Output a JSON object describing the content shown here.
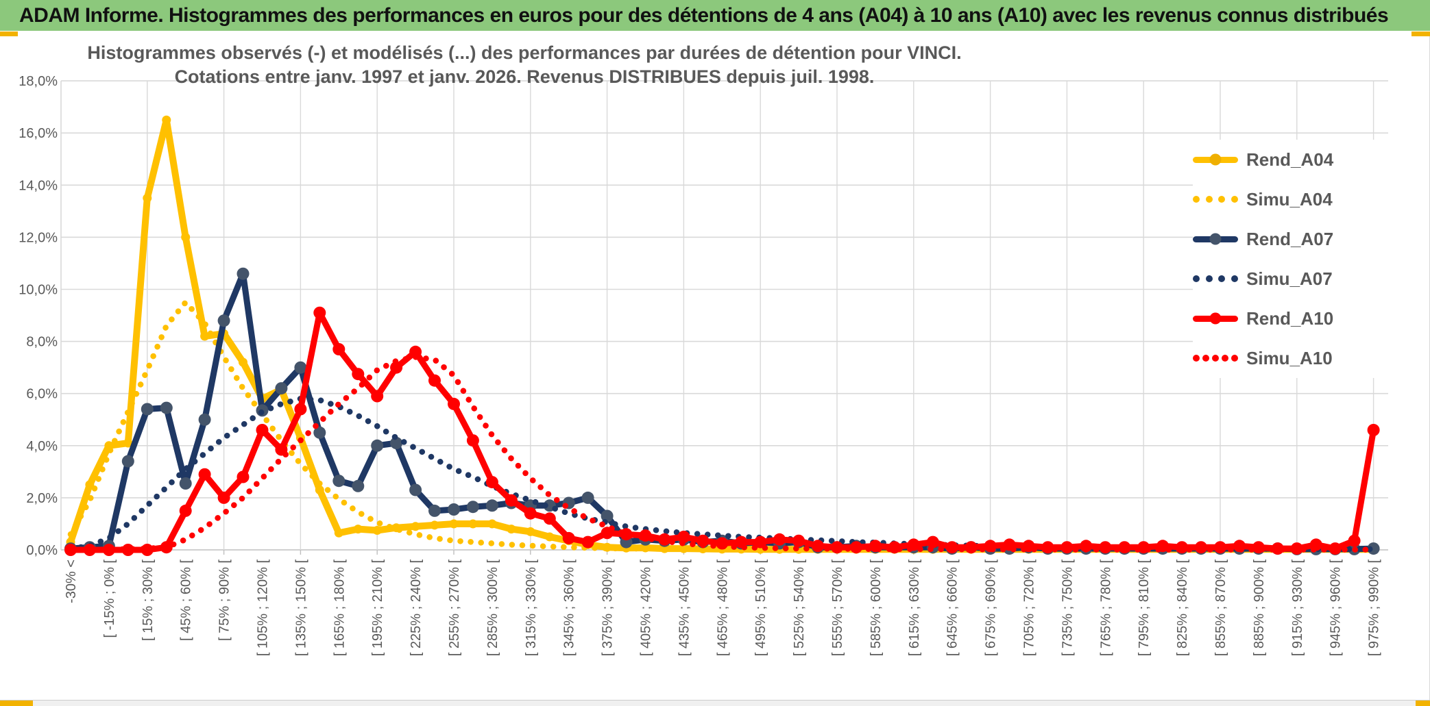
{
  "header": {
    "title": "ADAM Informe. Histogrammes des performances en euros pour des détentions de 4 ans (A04) à 10 ans (A10) avec les revenus connus distribués"
  },
  "chart": {
    "title_line1": "Histogrammes observés (-) et modélisés (...) des performances par durées de détention pour VINCI.",
    "title_line2": "Cotations entre janv. 1997 et janv. 2026. Revenus DISTRIBUES depuis juil. 1998."
  },
  "colors": {
    "header_bg": "#8CC87C",
    "gold": "#FFC000",
    "navy": "#1F3864",
    "navy_marker": "#44546A",
    "red": "#FF0000",
    "grid": "#D9D9D9",
    "axis_line": "#BFBFBF",
    "axis_text": "#595959",
    "corner_accent": "#F2B200"
  },
  "chart_data": {
    "type": "line",
    "title": "Histogrammes observés (-) et modélisés (...) des performances par durées de détention pour VINCI. Cotations entre janv. 1997 et janv. 2026. Revenus DISTRIBUES depuis juil. 1998.",
    "xlabel": "",
    "ylabel": "",
    "ylim": [
      0,
      18
    ],
    "grid": true,
    "legend_position": "right",
    "y_ticks": [
      "18,0%",
      "16,0%",
      "14,0%",
      "12,0%",
      "10,0%",
      "8,0%",
      "6,0%",
      "4,0%",
      "2,0%",
      "0,0%"
    ],
    "categories": [
      "-30% <",
      "",
      "[ -15% ; 0% [",
      "",
      "[ 15% ; 30% [",
      "",
      "[ 45% ; 60% [",
      "",
      "[ 75% ; 90% [",
      "",
      "[ 105% ; 120% [",
      "",
      "[ 135% ; 150% [",
      "",
      "[ 165% ; 180% [",
      "",
      "[ 195% ; 210% [",
      "",
      "[ 225% ; 240% [",
      "",
      "[ 255% ; 270% [",
      "",
      "[ 285% ; 300% [",
      "",
      "[ 315% ; 330% [",
      "",
      "[ 345% ; 360% [",
      "",
      "[ 375% ; 390% [",
      "",
      "[ 405% ; 420% [",
      "",
      "[ 435% ; 450% [",
      "",
      "[ 465% ; 480% [",
      "",
      "[ 495% ; 510% [",
      "",
      "[ 525% ; 540% [",
      "",
      "[ 555% ; 570% [",
      "",
      "[ 585% ; 600% [",
      "",
      "[ 615% ; 630% [",
      "",
      "[ 645% ; 660% [",
      "",
      "[ 675% ; 690% [",
      "",
      "[ 705% ; 720% [",
      "",
      "[ 735% ; 750% [",
      "",
      "[ 765% ; 780% [",
      "",
      "[ 795% ; 810% [",
      "",
      "[ 825% ; 840% [",
      "",
      "[ 855% ; 870% [",
      "",
      "[ 885% ; 900% [",
      "",
      "[ 915% ; 930% [",
      "",
      "[ 945% ; 960% [",
      "",
      "[ 975% ; 990% ["
    ],
    "series": [
      {
        "name": "Rend_A04",
        "color": "#FFC000",
        "marker_color": "#FFC000",
        "style": "solid",
        "marker": true,
        "values": [
          0.3,
          2.5,
          4.0,
          4.1,
          13.5,
          16.5,
          12.0,
          8.2,
          8.3,
          7.2,
          5.8,
          6.15,
          4.3,
          2.3,
          0.65,
          0.8,
          0.75,
          0.85,
          0.9,
          0.95,
          1.0,
          1.0,
          1.0,
          0.8,
          0.7,
          0.5,
          0.35,
          0.2,
          0.1,
          0.07,
          0.08,
          0.05,
          0.05,
          0.04,
          0.03,
          0.03,
          0.02,
          0.02,
          0.02,
          0.02,
          0.02,
          0.02,
          0.02,
          0.02,
          0.02,
          0.02,
          0.02,
          0.02,
          0.02,
          0.02,
          0.02,
          0.02,
          0.02,
          0.02,
          0.02,
          0.02,
          0.02,
          0.02,
          0.02,
          0.02,
          0.02,
          0.02,
          0.02,
          0.02,
          0.02,
          0.02,
          0.02,
          0.02,
          0.02
        ]
      },
      {
        "name": "Simu_A04",
        "color": "#FFC000",
        "style": "dotted",
        "marker": false,
        "values": [
          0.6,
          1.9,
          3.7,
          5.3,
          6.9,
          8.6,
          9.5,
          8.7,
          7.4,
          6.2,
          5.2,
          4.2,
          3.3,
          2.55,
          1.95,
          1.45,
          1.05,
          0.8,
          0.6,
          0.45,
          0.35,
          0.3,
          0.25,
          0.2,
          0.16,
          0.13,
          0.1,
          0.08,
          0.06,
          0.05,
          0.05,
          0.04,
          0.04,
          0.03,
          0.03,
          0.03,
          0.02,
          0.02,
          0.02,
          0.02,
          0.02,
          0.02,
          0.02,
          0.02,
          0.02,
          0.02,
          0.02,
          0.02,
          0.02,
          0.02,
          0.02,
          0.02,
          0.02,
          0.02,
          0.02,
          0.02,
          0.02,
          0.02,
          0.02,
          0.02,
          0.02,
          0.02,
          0.02,
          0.02,
          0.02,
          0.02,
          0.02,
          0.02,
          0.02
        ]
      },
      {
        "name": "Rend_A07",
        "color": "#1F3864",
        "marker_color": "#44546A",
        "style": "solid",
        "marker": true,
        "values": [
          0.05,
          0.1,
          0.15,
          3.4,
          5.4,
          5.45,
          2.55,
          5.0,
          8.8,
          10.6,
          5.35,
          6.2,
          7.0,
          4.5,
          2.65,
          2.45,
          4.0,
          4.1,
          2.3,
          1.5,
          1.55,
          1.65,
          1.7,
          1.8,
          1.7,
          1.7,
          1.8,
          2.0,
          1.3,
          0.3,
          0.4,
          0.35,
          0.4,
          0.3,
          0.35,
          0.25,
          0.3,
          0.25,
          0.3,
          0.1,
          0.1,
          0.15,
          0.1,
          0.1,
          0.1,
          0.1,
          0.05,
          0.1,
          0.05,
          0.05,
          0.1,
          0.05,
          0.05,
          0.05,
          0.05,
          0.05,
          0.05,
          0.05,
          0.05,
          0.05,
          0.05,
          0.05,
          0.05,
          0.05,
          0.03,
          0.03,
          0.03,
          0.03,
          0.05
        ]
      },
      {
        "name": "Simu_A07",
        "color": "#1F3864",
        "style": "dotted",
        "marker": false,
        "values": [
          0.05,
          0.15,
          0.45,
          1.0,
          1.7,
          2.4,
          3.1,
          3.7,
          4.3,
          4.8,
          5.3,
          5.6,
          5.8,
          5.75,
          5.5,
          5.15,
          4.75,
          4.3,
          3.9,
          3.5,
          3.1,
          2.8,
          2.45,
          2.15,
          1.9,
          1.65,
          1.4,
          1.2,
          1.05,
          0.9,
          0.8,
          0.72,
          0.65,
          0.6,
          0.55,
          0.5,
          0.47,
          0.44,
          0.4,
          0.37,
          0.34,
          0.3,
          0.28,
          0.25,
          0.22,
          0.2,
          0.18,
          0.16,
          0.14,
          0.12,
          0.11,
          0.1,
          0.09,
          0.08,
          0.07,
          0.06,
          0.06,
          0.05,
          0.05,
          0.05,
          0.04,
          0.04,
          0.04,
          0.04,
          0.03,
          0.03,
          0.03,
          0.03,
          0.03
        ]
      },
      {
        "name": "Rend_A10",
        "color": "#FF0000",
        "marker_color": "#FF0000",
        "style": "solid",
        "marker": true,
        "values": [
          0,
          0,
          0,
          0,
          0,
          0.1,
          1.5,
          2.9,
          2.0,
          2.8,
          4.6,
          3.85,
          5.4,
          9.1,
          7.7,
          6.75,
          5.9,
          7.0,
          7.6,
          6.5,
          5.6,
          4.2,
          2.6,
          1.9,
          1.4,
          1.2,
          0.45,
          0.3,
          0.65,
          0.6,
          0.55,
          0.4,
          0.5,
          0.35,
          0.25,
          0.3,
          0.3,
          0.4,
          0.35,
          0.15,
          0.1,
          0.1,
          0.15,
          0.1,
          0.2,
          0.3,
          0.1,
          0.1,
          0.15,
          0.2,
          0.15,
          0.1,
          0.1,
          0.15,
          0.1,
          0.1,
          0.1,
          0.15,
          0.1,
          0.1,
          0.1,
          0.15,
          0.1,
          0.05,
          0.05,
          0.2,
          0.05,
          0.35,
          4.6
        ]
      },
      {
        "name": "Simu_A10",
        "color": "#FF0000",
        "style": "dotted",
        "marker": false,
        "values": [
          0,
          0,
          0.02,
          0.03,
          0.05,
          0.1,
          0.4,
          0.85,
          1.4,
          2.0,
          2.75,
          3.5,
          4.2,
          4.9,
          5.6,
          6.2,
          6.9,
          7.25,
          7.4,
          7.3,
          6.7,
          5.5,
          4.4,
          3.5,
          2.75,
          2.1,
          1.6,
          1.2,
          0.9,
          0.6,
          0.45,
          0.33,
          0.25,
          0.18,
          0.14,
          0.1,
          0.08,
          0.06,
          0.05,
          0.05,
          0.04,
          0.04,
          0.03,
          0.03,
          0.03,
          0.03,
          0.02,
          0.02,
          0.02,
          0.02,
          0.02,
          0.02,
          0.01,
          0.01,
          0.01,
          0.01,
          0.01,
          0.01,
          0.01,
          0.01,
          0.01,
          0.01,
          0.01,
          0.01,
          0.01,
          0.01,
          0.01,
          0.01,
          0.01
        ]
      }
    ]
  }
}
